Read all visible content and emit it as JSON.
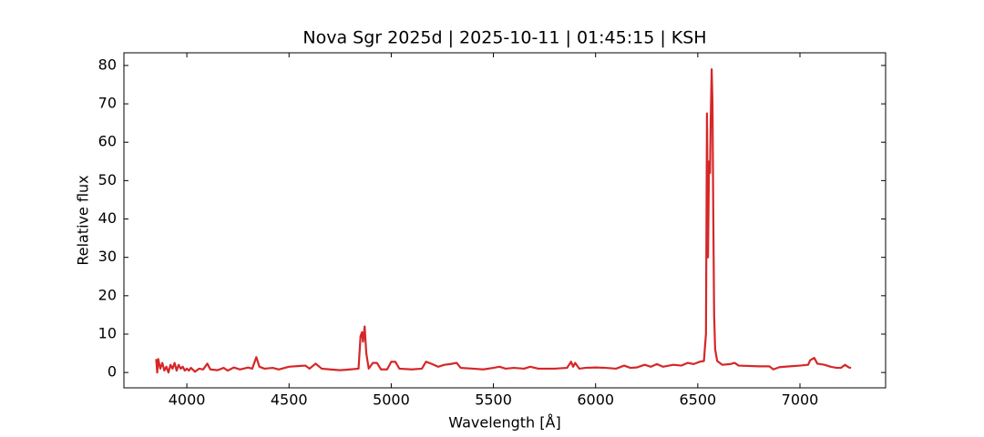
{
  "chart_data": {
    "type": "line",
    "title": "Nova Sgr 2025d | 2025-10-11 | 01:45:15 | KSH",
    "x_label": "Wavelength [Å]",
    "y_label": "Relative flux",
    "x": [
      3850,
      3855,
      3860,
      3870,
      3880,
      3890,
      3900,
      3910,
      3920,
      3930,
      3940,
      3950,
      3960,
      3970,
      3980,
      3990,
      4000,
      4010,
      4020,
      4040,
      4060,
      4080,
      4100,
      4115,
      4150,
      4180,
      4200,
      4230,
      4260,
      4300,
      4320,
      4340,
      4355,
      4380,
      4420,
      4450,
      4500,
      4550,
      4580,
      4600,
      4630,
      4660,
      4700,
      4750,
      4800,
      4840,
      4850,
      4857,
      4862,
      4870,
      4878,
      4890,
      4910,
      4930,
      4950,
      4980,
      5000,
      5020,
      5040,
      5100,
      5150,
      5170,
      5200,
      5230,
      5260,
      5290,
      5320,
      5340,
      5400,
      5450,
      5500,
      5530,
      5560,
      5600,
      5650,
      5680,
      5720,
      5800,
      5860,
      5880,
      5890,
      5900,
      5920,
      5950,
      6000,
      6050,
      6100,
      6140,
      6170,
      6200,
      6240,
      6270,
      6300,
      6330,
      6380,
      6420,
      6450,
      6480,
      6510,
      6530,
      6540,
      6545,
      6550,
      6555,
      6560,
      6563,
      6568,
      6572,
      6576,
      6580,
      6585,
      6595,
      6620,
      6660,
      6680,
      6700,
      6800,
      6850,
      6870,
      6900,
      6950,
      7000,
      7040,
      7050,
      7070,
      7085,
      7120,
      7150,
      7180,
      7200,
      7220,
      7240,
      7250
    ],
    "series": [
      {
        "color": "#d62728",
        "values": [
          3.5,
          0,
          3.5,
          1,
          2.5,
          0.5,
          1.5,
          0,
          2,
          1,
          2.5,
          0.5,
          2,
          1,
          1.5,
          0.5,
          1,
          0.5,
          1.2,
          0.2,
          1,
          0.8,
          2.3,
          0.8,
          0.6,
          1.2,
          0.5,
          1.3,
          0.8,
          1.3,
          1,
          4,
          1.5,
          1,
          1.2,
          0.8,
          1.5,
          1.7,
          1.8,
          1,
          2.3,
          1,
          0.8,
          0.6,
          0.8,
          1,
          9.5,
          10.5,
          8,
          12,
          5,
          1,
          2.5,
          2.5,
          0.8,
          0.8,
          2.8,
          2.8,
          1,
          0.8,
          1,
          2.8,
          2.2,
          1.5,
          2,
          2.2,
          2.5,
          1.2,
          1,
          0.8,
          1.2,
          1.5,
          1,
          1.2,
          1,
          1.5,
          1,
          1,
          1.2,
          2.8,
          1.5,
          2.5,
          1,
          1.2,
          1.3,
          1.2,
          1,
          1.8,
          1.2,
          1.3,
          2,
          1.5,
          2.2,
          1.5,
          2,
          1.8,
          2.5,
          2.2,
          2.8,
          3,
          10,
          67.5,
          30,
          55,
          52,
          65,
          79,
          70,
          40,
          15,
          6,
          3,
          2,
          2.2,
          2.5,
          1.8,
          1.6,
          1.6,
          0.8,
          1.4,
          1.6,
          1.8,
          2,
          3.2,
          3.8,
          2.3,
          2,
          1.5,
          1.2,
          1.2,
          2,
          1.3,
          1.2
        ]
      }
    ],
    "xlim": [
      3692,
      7419
    ],
    "ylim": [
      -4.0,
      83.3
    ],
    "xticks": [
      4000,
      4500,
      5000,
      5500,
      6000,
      6500,
      7000
    ],
    "yticks": [
      0,
      10,
      20,
      30,
      40,
      50,
      60,
      70,
      80
    ]
  }
}
